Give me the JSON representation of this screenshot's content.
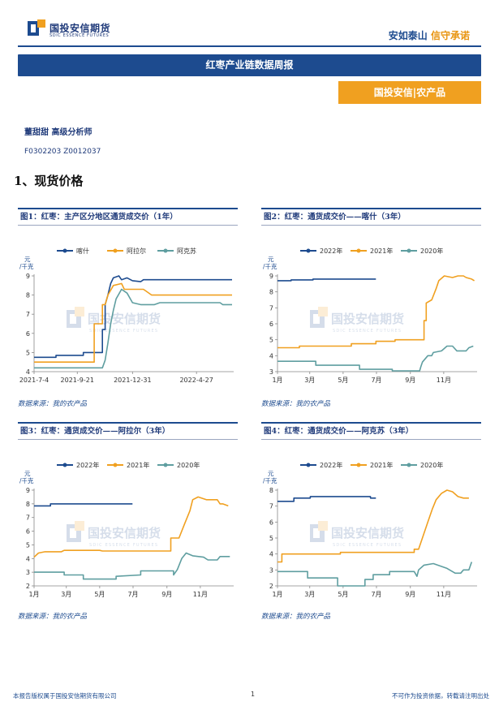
{
  "header": {
    "logo_cn": "国投安信期货",
    "logo_en": "SDIC ESSENCE FUTURES",
    "slogan_a": "安如泰山",
    "slogan_b": "信守承诺"
  },
  "report_title": "红枣产业链数据周报",
  "category_tag": "国投安信|农产品",
  "analyst": "董甜甜  高级分析师",
  "license": "F0302203  Z0012037",
  "section_heading": "1、现货价格",
  "watermark": {
    "cn": "国投安信期货",
    "en": "SDIC ESSENCE FUTURES"
  },
  "colors": {
    "navy": "#1d4b8f",
    "orange": "#f0a020",
    "teal": "#5f9ea0"
  },
  "chart_data": [
    {
      "type": "line",
      "figure_title": "图1：红枣：主产区分地区通货成交价（1年）",
      "source": "数据来源：我的农产品",
      "ylabel": "元/千克",
      "ylim": [
        4,
        9
      ],
      "yticks": [
        "4",
        "5",
        "6",
        "7",
        "8",
        "9"
      ],
      "xlim": [
        0,
        365
      ],
      "xticks": [
        {
          "x": 0,
          "label": "2021-7-4"
        },
        {
          "x": 79,
          "label": "2021-9-21"
        },
        {
          "x": 180,
          "label": "2021-12-31"
        },
        {
          "x": 297,
          "label": "2022-4-27"
        }
      ],
      "series": [
        {
          "name": "喀什",
          "color": "#1d4b8f",
          "points": [
            [
              0,
              4.75
            ],
            [
              40,
              4.75
            ],
            [
              40,
              4.85
            ],
            [
              90,
              4.85
            ],
            [
              90,
              5.0
            ],
            [
              125,
              5.0
            ],
            [
              125,
              6.2
            ],
            [
              130,
              6.2
            ],
            [
              130,
              7.5
            ],
            [
              135,
              8.0
            ],
            [
              140,
              8.6
            ],
            [
              145,
              8.9
            ],
            [
              155,
              9.0
            ],
            [
              160,
              8.8
            ],
            [
              170,
              8.9
            ],
            [
              180,
              8.75
            ],
            [
              195,
              8.7
            ],
            [
              200,
              8.8
            ],
            [
              362,
              8.8
            ]
          ]
        },
        {
          "name": "阿拉尔",
          "color": "#f0a020",
          "points": [
            [
              0,
              4.5
            ],
            [
              110,
              4.5
            ],
            [
              110,
              6.5
            ],
            [
              125,
              6.5
            ],
            [
              125,
              7.5
            ],
            [
              130,
              7.5
            ],
            [
              135,
              8.0
            ],
            [
              145,
              8.5
            ],
            [
              160,
              8.6
            ],
            [
              165,
              8.3
            ],
            [
              200,
              8.3
            ],
            [
              205,
              8.2
            ],
            [
              215,
              8.0
            ],
            [
              362,
              8.0
            ]
          ]
        },
        {
          "name": "阿克苏",
          "color": "#5f9ea0",
          "points": [
            [
              0,
              4.2
            ],
            [
              125,
              4.2
            ],
            [
              130,
              4.6
            ],
            [
              135,
              5.5
            ],
            [
              140,
              6.5
            ],
            [
              145,
              7.2
            ],
            [
              150,
              7.8
            ],
            [
              160,
              8.3
            ],
            [
              170,
              8.1
            ],
            [
              180,
              7.6
            ],
            [
              195,
              7.5
            ],
            [
              220,
              7.5
            ],
            [
              230,
              7.6
            ],
            [
              340,
              7.6
            ],
            [
              345,
              7.5
            ],
            [
              362,
              7.5
            ]
          ]
        }
      ]
    },
    {
      "type": "line",
      "figure_title": "图2：红枣：通货成交价——喀什（3年）",
      "source": "数据来源：我的农产品",
      "ylabel": "元/千克",
      "ylim": [
        3,
        9
      ],
      "yticks": [
        "3",
        "4",
        "5",
        "6",
        "7",
        "8",
        "9"
      ],
      "xlim": [
        0,
        365
      ],
      "xticks": [
        {
          "x": 0,
          "label": "1月"
        },
        {
          "x": 59,
          "label": "3月"
        },
        {
          "x": 120,
          "label": "5月"
        },
        {
          "x": 181,
          "label": "7月"
        },
        {
          "x": 243,
          "label": "9月"
        },
        {
          "x": 304,
          "label": "11月"
        }
      ],
      "series": [
        {
          "name": "2022年",
          "color": "#1d4b8f",
          "points": [
            [
              0,
              8.7
            ],
            [
              25,
              8.7
            ],
            [
              25,
              8.75
            ],
            [
              65,
              8.75
            ],
            [
              65,
              8.8
            ],
            [
              180,
              8.8
            ]
          ]
        },
        {
          "name": "2021年",
          "color": "#f0a020",
          "points": [
            [
              0,
              4.5
            ],
            [
              40,
              4.5
            ],
            [
              40,
              4.6
            ],
            [
              135,
              4.6
            ],
            [
              135,
              4.75
            ],
            [
              180,
              4.75
            ],
            [
              180,
              4.9
            ],
            [
              215,
              4.9
            ],
            [
              215,
              5.0
            ],
            [
              268,
              5.0
            ],
            [
              268,
              6.2
            ],
            [
              272,
              6.2
            ],
            [
              272,
              7.3
            ],
            [
              282,
              7.5
            ],
            [
              290,
              8.2
            ],
            [
              295,
              8.7
            ],
            [
              305,
              9.0
            ],
            [
              320,
              8.9
            ],
            [
              330,
              9.0
            ],
            [
              340,
              9.0
            ],
            [
              345,
              8.9
            ],
            [
              355,
              8.8
            ],
            [
              360,
              8.7
            ]
          ]
        },
        {
          "name": "2020年",
          "color": "#5f9ea0",
          "points": [
            [
              0,
              3.65
            ],
            [
              70,
              3.65
            ],
            [
              70,
              3.4
            ],
            [
              150,
              3.4
            ],
            [
              150,
              3.15
            ],
            [
              210,
              3.15
            ],
            [
              210,
              3.05
            ],
            [
              260,
              3.05
            ],
            [
              262,
              3.3
            ],
            [
              265,
              3.6
            ],
            [
              275,
              4.0
            ],
            [
              282,
              4.0
            ],
            [
              285,
              4.2
            ],
            [
              300,
              4.3
            ],
            [
              310,
              4.6
            ],
            [
              320,
              4.6
            ],
            [
              328,
              4.3
            ],
            [
              345,
              4.3
            ],
            [
              350,
              4.5
            ],
            [
              358,
              4.6
            ]
          ]
        }
      ]
    },
    {
      "type": "line",
      "figure_title": "图3：红枣：通货成交价——阿拉尔（3年）",
      "source": "数据来源：我的农产品",
      "ylabel": "元/千克",
      "ylim": [
        2,
        9
      ],
      "yticks": [
        "2",
        "3",
        "4",
        "5",
        "6",
        "7",
        "8",
        "9"
      ],
      "xlim": [
        0,
        365
      ],
      "xticks": [
        {
          "x": 0,
          "label": "1月"
        },
        {
          "x": 59,
          "label": "3月"
        },
        {
          "x": 120,
          "label": "5月"
        },
        {
          "x": 181,
          "label": "7月"
        },
        {
          "x": 243,
          "label": "9月"
        },
        {
          "x": 304,
          "label": "11月"
        }
      ],
      "series": [
        {
          "name": "2022年",
          "color": "#1d4b8f",
          "points": [
            [
              0,
              7.85
            ],
            [
              30,
              7.85
            ],
            [
              30,
              8.0
            ],
            [
              180,
              8.0
            ]
          ]
        },
        {
          "name": "2021年",
          "color": "#f0a020",
          "points": [
            [
              0,
              4.1
            ],
            [
              8,
              4.4
            ],
            [
              20,
              4.5
            ],
            [
              50,
              4.5
            ],
            [
              55,
              4.6
            ],
            [
              120,
              4.6
            ],
            [
              125,
              4.55
            ],
            [
              250,
              4.55
            ],
            [
              250,
              5.5
            ],
            [
              265,
              5.5
            ],
            [
              275,
              6.5
            ],
            [
              285,
              7.5
            ],
            [
              290,
              8.3
            ],
            [
              300,
              8.5
            ],
            [
              315,
              8.3
            ],
            [
              335,
              8.3
            ],
            [
              340,
              8.0
            ],
            [
              345,
              8.0
            ],
            [
              355,
              7.85
            ]
          ]
        },
        {
          "name": "2020年",
          "color": "#5f9ea0",
          "points": [
            [
              0,
              3.0
            ],
            [
              55,
              3.0
            ],
            [
              55,
              2.8
            ],
            [
              90,
              2.8
            ],
            [
              90,
              2.5
            ],
            [
              150,
              2.5
            ],
            [
              150,
              2.7
            ],
            [
              195,
              2.8
            ],
            [
              195,
              3.1
            ],
            [
              255,
              3.1
            ],
            [
              255,
              2.8
            ],
            [
              262,
              3.2
            ],
            [
              270,
              4.0
            ],
            [
              278,
              4.4
            ],
            [
              290,
              4.2
            ],
            [
              310,
              4.1
            ],
            [
              318,
              3.9
            ],
            [
              335,
              3.9
            ],
            [
              340,
              4.15
            ],
            [
              358,
              4.15
            ]
          ]
        }
      ]
    },
    {
      "type": "line",
      "figure_title": "图4：红枣：通货成交价——阿克苏（3年）",
      "source": "数据来源：我的农产品",
      "ylabel": "元/千克",
      "ylim": [
        2,
        8
      ],
      "yticks": [
        "2",
        "3",
        "4",
        "5",
        "6",
        "7",
        "8"
      ],
      "xlim": [
        0,
        365
      ],
      "xticks": [
        {
          "x": 0,
          "label": "1月"
        },
        {
          "x": 59,
          "label": "3月"
        },
        {
          "x": 120,
          "label": "5月"
        },
        {
          "x": 181,
          "label": "7月"
        },
        {
          "x": 243,
          "label": "9月"
        },
        {
          "x": 304,
          "label": "11月"
        }
      ],
      "series": [
        {
          "name": "2022年",
          "color": "#1d4b8f",
          "points": [
            [
              0,
              7.3
            ],
            [
              30,
              7.3
            ],
            [
              30,
              7.5
            ],
            [
              60,
              7.5
            ],
            [
              60,
              7.6
            ],
            [
              170,
              7.6
            ],
            [
              170,
              7.5
            ],
            [
              180,
              7.5
            ]
          ]
        },
        {
          "name": "2021年",
          "color": "#f0a020",
          "points": [
            [
              0,
              3.5
            ],
            [
              8,
              3.5
            ],
            [
              8,
              4.0
            ],
            [
              115,
              4.0
            ],
            [
              115,
              4.1
            ],
            [
              250,
              4.1
            ],
            [
              250,
              4.3
            ],
            [
              258,
              4.3
            ],
            [
              265,
              5.0
            ],
            [
              275,
              6.0
            ],
            [
              283,
              6.8
            ],
            [
              290,
              7.4
            ],
            [
              300,
              7.8
            ],
            [
              310,
              8.0
            ],
            [
              320,
              7.9
            ],
            [
              330,
              7.6
            ],
            [
              340,
              7.5
            ],
            [
              350,
              7.5
            ]
          ]
        },
        {
          "name": "2020年",
          "color": "#5f9ea0",
          "points": [
            [
              0,
              2.9
            ],
            [
              55,
              2.9
            ],
            [
              55,
              2.5
            ],
            [
              110,
              2.5
            ],
            [
              110,
              2.0
            ],
            [
              160,
              2.0
            ],
            [
              160,
              2.4
            ],
            [
              175,
              2.4
            ],
            [
              175,
              2.7
            ],
            [
              205,
              2.7
            ],
            [
              205,
              2.9
            ],
            [
              250,
              2.9
            ],
            [
              255,
              2.6
            ],
            [
              258,
              3.0
            ],
            [
              268,
              3.3
            ],
            [
              285,
              3.4
            ],
            [
              310,
              3.1
            ],
            [
              325,
              2.8
            ],
            [
              335,
              2.8
            ],
            [
              340,
              3.0
            ],
            [
              350,
              3.0
            ],
            [
              355,
              3.5
            ]
          ]
        }
      ]
    }
  ],
  "footer": {
    "left": "本报告版权属于国投安信期货有限公司",
    "page": "1",
    "right": "不可作为投资依据，转载请注明出处"
  }
}
